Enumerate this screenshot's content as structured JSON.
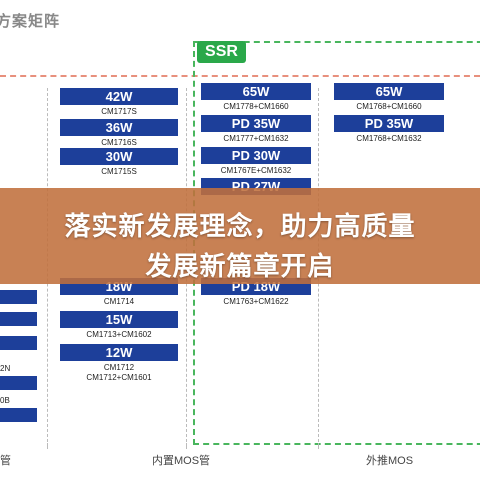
{
  "page": {
    "title": "方案矩阵",
    "headline_line1": "落实新发展理念，助力高质量",
    "headline_line2": "发展新篇章开启"
  },
  "ssr": {
    "badge": "SSR"
  },
  "columns": {
    "internal_mos": {
      "label": "内置MOS管",
      "cards": [
        {
          "power": "42W",
          "parts": "CM1717S"
        },
        {
          "power": "36W",
          "parts": "CM1716S"
        },
        {
          "power": "30W",
          "parts": "CM1715S"
        },
        {
          "power": "18W",
          "parts": "CM1714"
        },
        {
          "power": "15W",
          "parts": "CM1713+CM1602"
        },
        {
          "power": "12W",
          "parts": "CM1712\nCM1712+CM1601"
        }
      ]
    },
    "ssr_mid": {
      "cards": [
        {
          "power": "65W",
          "parts": "CM1778+CM1660"
        },
        {
          "power": "PD 35W",
          "parts": "CM1777+CM1632"
        },
        {
          "power": "PD 30W",
          "parts": "CM1767E+CM1632"
        },
        {
          "power": "PD 27W",
          "parts": ""
        },
        {
          "power": "PD 18W",
          "parts": "CM1763+CM1622"
        }
      ]
    },
    "ssr_right": {
      "cards": [
        {
          "power": "65W",
          "parts": "CM1768+CM1660"
        },
        {
          "power": "PD 35W",
          "parts": "CM1768+CM1632"
        }
      ]
    },
    "external_mos": {
      "label": "外推MOS"
    },
    "left_partial": {
      "label": "管",
      "texts": [
        "2N",
        "0B"
      ]
    }
  }
}
